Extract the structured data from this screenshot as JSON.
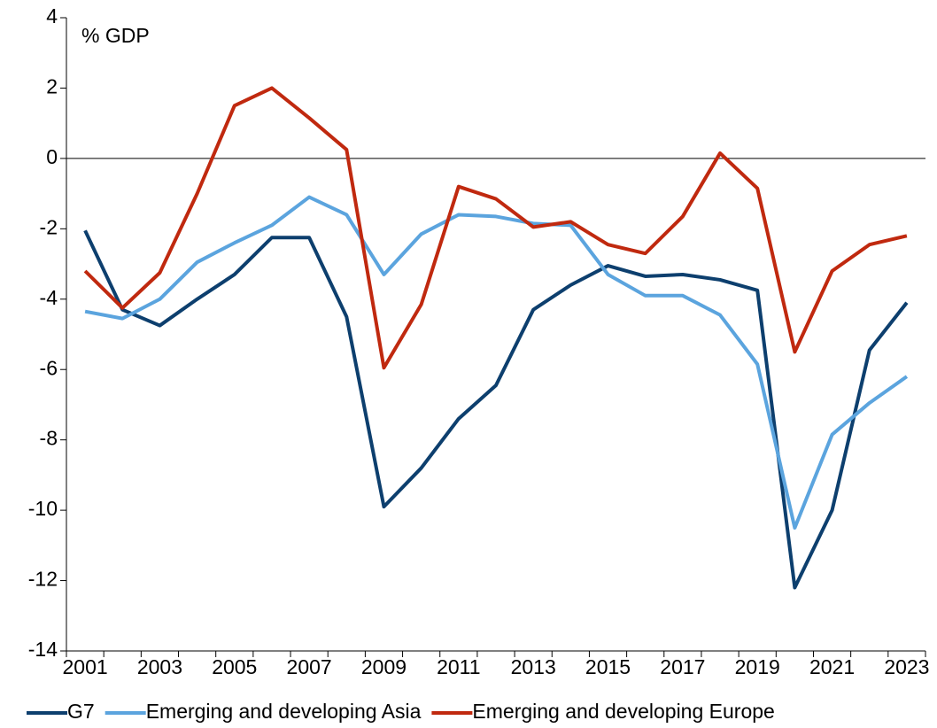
{
  "chart_data": {
    "type": "line",
    "y_label": "% GDP",
    "categories": [
      "2001",
      null,
      "2003",
      null,
      "2005",
      null,
      "2007",
      null,
      "2009",
      null,
      "2011",
      null,
      "2013",
      null,
      "2015",
      null,
      "2017",
      null,
      "2019",
      null,
      "2021",
      null,
      "2023"
    ],
    "series": [
      {
        "name": "G7",
        "color": "#0d3f6e",
        "values": [
          -2.05,
          -4.3,
          -4.75,
          -4.0,
          -3.3,
          -2.25,
          -2.25,
          -4.5,
          -9.9,
          -8.8,
          -7.4,
          -6.45,
          -4.3,
          -3.6,
          -3.05,
          -3.35,
          -3.3,
          -3.45,
          -3.75,
          -12.2,
          -10.0,
          -5.45,
          -4.1
        ]
      },
      {
        "name": "Emerging and developing Asia",
        "color": "#5ba4de",
        "values": [
          -4.35,
          -4.55,
          -4.0,
          -2.95,
          -2.4,
          -1.9,
          -1.1,
          -1.6,
          -3.3,
          -2.15,
          -1.6,
          -1.65,
          -1.85,
          -1.9,
          -3.3,
          -3.9,
          -3.9,
          -4.45,
          -5.85,
          -10.5,
          -7.85,
          -6.95,
          -6.2
        ]
      },
      {
        "name": "Emerging and developing Europe",
        "color": "#c0290f",
        "values": [
          -3.2,
          -4.25,
          -3.25,
          -1.0,
          1.5,
          2.0,
          1.15,
          0.25,
          -5.95,
          -4.15,
          -0.8,
          -1.15,
          -1.95,
          -1.8,
          -2.45,
          -2.7,
          -1.65,
          0.15,
          -0.85,
          -5.5,
          -3.2,
          -2.45,
          -2.2
        ]
      }
    ],
    "ylim": [
      -14,
      4
    ],
    "yticks": [
      -14,
      -12,
      -10,
      -8,
      -6,
      -4,
      -2,
      0,
      2,
      4
    ],
    "zero_line": true,
    "legend": "bottom"
  }
}
